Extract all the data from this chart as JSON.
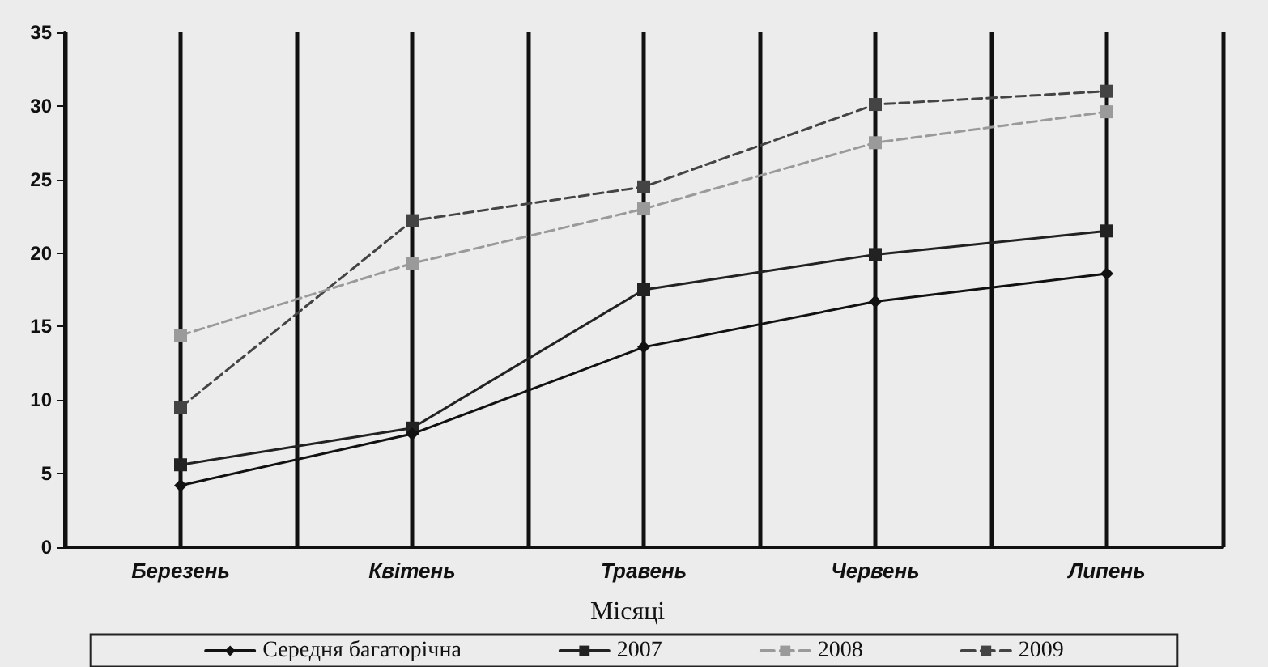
{
  "chart_data": {
    "type": "line",
    "xlabel": "Місяці",
    "categories": [
      "Березень",
      "Квітень",
      "Травень",
      "Червень",
      "Липень"
    ],
    "series": [
      {
        "name": "Середня багаторічна",
        "color": "#111111",
        "marker": "diamond",
        "line_style": "solid",
        "values": [
          4.2,
          7.7,
          13.6,
          16.7,
          18.6
        ]
      },
      {
        "name": "2007",
        "color": "#222222",
        "marker": "square",
        "line_style": "solid",
        "values": [
          5.6,
          8.1,
          17.5,
          19.9,
          21.5
        ]
      },
      {
        "name": "2008",
        "color": "#9a9a9a",
        "marker": "square",
        "line_style": "dashed",
        "values": [
          14.4,
          19.3,
          23.0,
          27.5,
          29.6
        ]
      },
      {
        "name": "2009",
        "color": "#444444",
        "marker": "square",
        "line_style": "dashed",
        "values": [
          9.5,
          22.2,
          24.5,
          30.1,
          31.0
        ]
      }
    ],
    "ylim": [
      0,
      35
    ],
    "yticks": [
      0,
      5,
      10,
      15,
      20,
      25,
      30,
      35
    ],
    "grid": "x",
    "legend": "bottom"
  }
}
